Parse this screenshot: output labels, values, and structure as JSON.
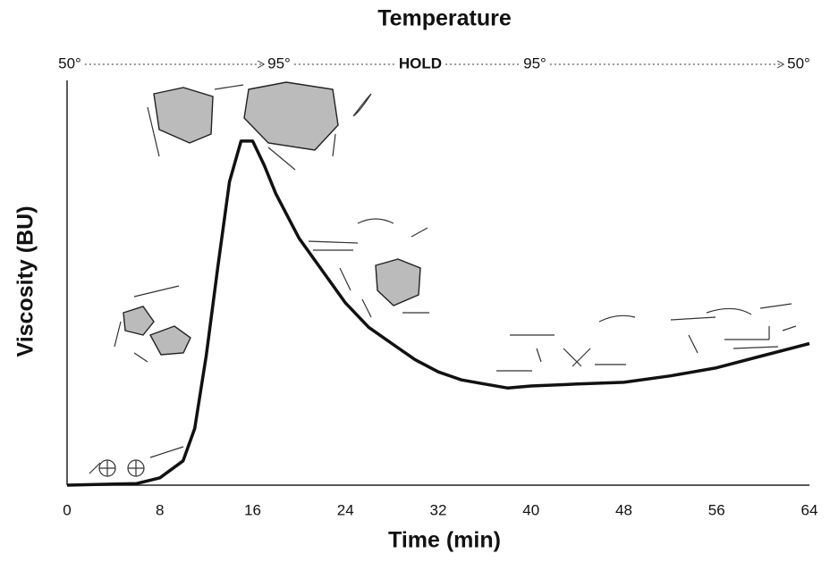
{
  "chart_data": {
    "type": "line",
    "title": "Temperature",
    "annotations": [
      "50°",
      "95°",
      "HOLD",
      "95°",
      "50°"
    ],
    "x_label": "Time (min)",
    "y_label": "Viscosity (BU)",
    "x": [
      0,
      6,
      8,
      10,
      11,
      12,
      13,
      14,
      15,
      16,
      17,
      18,
      20,
      22,
      24,
      26,
      28,
      30,
      32,
      34,
      36,
      38,
      40,
      44,
      48,
      52,
      56,
      60,
      64
    ],
    "values": [
      0,
      0.4,
      1.8,
      6,
      14,
      32,
      54,
      75,
      85,
      85,
      79,
      72,
      61,
      53,
      45,
      39,
      35,
      31,
      28,
      26,
      25,
      24,
      24.5,
      25,
      25.4,
      27,
      29,
      32,
      35
    ],
    "color": "#111111",
    "xlim": [
      0,
      64
    ],
    "xticks": [
      0,
      8,
      16,
      24,
      32,
      40,
      48,
      56,
      64
    ],
    "ylim": [
      0,
      100
    ],
    "grid": false
  }
}
